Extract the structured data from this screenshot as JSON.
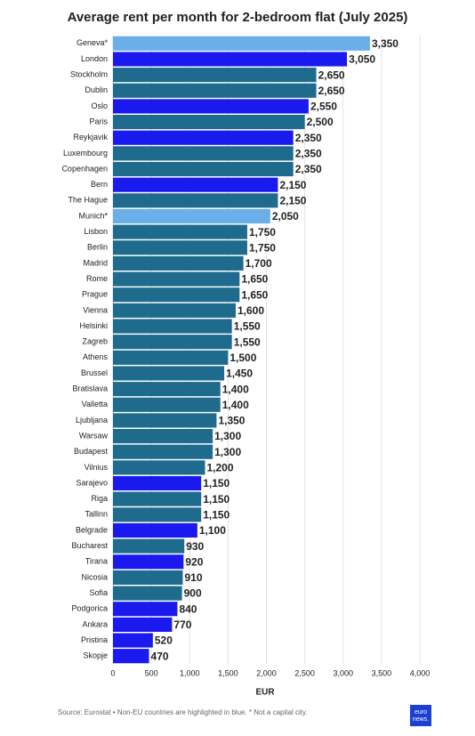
{
  "chart_data": {
    "type": "bar",
    "orientation": "horizontal",
    "title": "Average rent per month for 2-bedroom flat (July 2025)",
    "categories": [
      "Geneva*",
      "London",
      "Stockholm",
      "Dublin",
      "Oslo",
      "Paris",
      "Reykjavik",
      "Luxembourg",
      "Copenhagen",
      "Bern",
      "The Hague",
      "Munich*",
      "Lisbon",
      "Berlin",
      "Madrid",
      "Rome",
      "Prague",
      "Vienna",
      "Helsinki",
      "Zagreb",
      "Athens",
      "Brussel",
      "Bratislava",
      "Valletta",
      "Ljubljana",
      "Warsaw",
      "Budapest",
      "Vilnius",
      "Sarajevo",
      "Riga",
      "Tallinn",
      "Belgrade",
      "Bucharest",
      "Tirana",
      "Nicosia",
      "Sofia",
      "Podgorica",
      "Ankara",
      "Pristina",
      "Skopje"
    ],
    "values": [
      3350,
      3050,
      2650,
      2650,
      2550,
      2500,
      2350,
      2350,
      2350,
      2150,
      2150,
      2050,
      1750,
      1750,
      1700,
      1650,
      1650,
      1600,
      1550,
      1550,
      1500,
      1450,
      1400,
      1400,
      1350,
      1300,
      1300,
      1200,
      1150,
      1150,
      1150,
      1100,
      930,
      920,
      910,
      900,
      840,
      770,
      520,
      470
    ],
    "value_labels": [
      "3,350",
      "3,050",
      "2,650",
      "2,650",
      "2,550",
      "2,500",
      "2,350",
      "2,350",
      "2,350",
      "2,150",
      "2,150",
      "2,050",
      "1,750",
      "1,750",
      "1,700",
      "1,650",
      "1,650",
      "1,600",
      "1,550",
      "1,550",
      "1,500",
      "1,450",
      "1,400",
      "1,400",
      "1,350",
      "1,300",
      "1,300",
      "1,200",
      "1,150",
      "1,150",
      "1,150",
      "1,100",
      "930",
      "920",
      "910",
      "900",
      "840",
      "770",
      "520",
      "470"
    ],
    "colors": [
      "#6aaeea",
      "#1a1aee",
      "#1f6b8e",
      "#1f6b8e",
      "#1a1aee",
      "#1f6b8e",
      "#1a1aee",
      "#1f6b8e",
      "#1f6b8e",
      "#1a1aee",
      "#1f6b8e",
      "#6aaeea",
      "#1f6b8e",
      "#1f6b8e",
      "#1f6b8e",
      "#1f6b8e",
      "#1f6b8e",
      "#1f6b8e",
      "#1f6b8e",
      "#1f6b8e",
      "#1f6b8e",
      "#1f6b8e",
      "#1f6b8e",
      "#1f6b8e",
      "#1f6b8e",
      "#1f6b8e",
      "#1f6b8e",
      "#1f6b8e",
      "#1a1aee",
      "#1f6b8e",
      "#1f6b8e",
      "#1a1aee",
      "#1f6b8e",
      "#1a1aee",
      "#1f6b8e",
      "#1f6b8e",
      "#1a1aee",
      "#1a1aee",
      "#1a1aee",
      "#1a1aee"
    ],
    "xlim": [
      0,
      4000
    ],
    "xticks": [
      0,
      500,
      {
        "value": 1000,
        "label": "1,000"
      },
      {
        "value": 1500,
        "label": "1,500"
      },
      {
        "value": 2000,
        "label": "2,000"
      },
      {
        "value": 2500,
        "label": "2,500"
      },
      {
        "value": 3000,
        "label": "3,000"
      },
      {
        "value": 3500,
        "label": "3,500"
      },
      {
        "value": 4000,
        "label": "4,000"
      }
    ],
    "xlabel": "EUR",
    "grid": true,
    "source": "Source: Eurostat • Non-EU countries are highlighted in blue. * Not a capital city.",
    "logo": [
      "euro",
      "news."
    ]
  }
}
